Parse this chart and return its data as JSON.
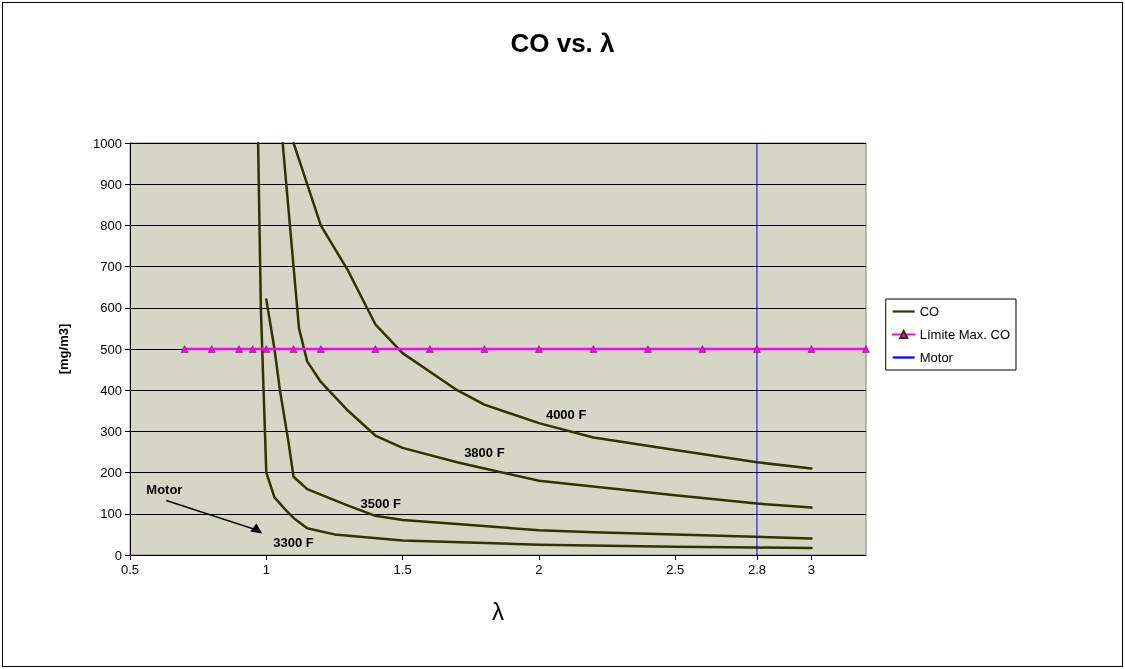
{
  "chart_data": {
    "type": "line",
    "title": "CO vs. λ",
    "xlabel": "λ",
    "ylabel": "[mg/m3]",
    "xlim": [
      0.5,
      3.2
    ],
    "xticks": [
      0.5,
      1,
      1.5,
      2,
      2.5,
      2.8,
      3
    ],
    "ylim": [
      0,
      1000
    ],
    "yticks": [
      0,
      100,
      200,
      300,
      400,
      500,
      600,
      700,
      800,
      900,
      1000
    ],
    "grid": "y",
    "legend": "right",
    "marker": "none",
    "line_style": "solid",
    "series": [
      {
        "name": "CO",
        "color": "#333300",
        "x": [
          0.97,
          0.975,
          0.98,
          0.99,
          1.0,
          1.03,
          1.07,
          1.1,
          1.15,
          1.25,
          1.5,
          2,
          2.5,
          2.8,
          3
        ],
        "values": [
          1000,
          800,
          600,
          400,
          200,
          140,
          110,
          90,
          65,
          50,
          35,
          25,
          20,
          18,
          17
        ]
      },
      {
        "color": "#333300",
        "x": [
          1.0,
          1.03,
          1.05,
          1.08,
          1.1,
          1.15,
          1.3,
          1.4,
          1.5,
          1.7,
          2,
          2.2,
          2.5,
          3
        ],
        "values": [
          620,
          500,
          400,
          280,
          190,
          160,
          120,
          95,
          85,
          75,
          60,
          55,
          50,
          40
        ]
      },
      {
        "color": "#333300",
        "x": [
          1.06,
          1.08,
          1.1,
          1.12,
          1.15,
          1.2,
          1.3,
          1.4,
          1.5,
          1.7,
          1.8,
          2,
          2.5,
          2.8,
          3
        ],
        "values": [
          1000,
          850,
          700,
          550,
          470,
          420,
          350,
          290,
          260,
          225,
          210,
          180,
          145,
          125,
          115
        ]
      },
      {
        "color": "#333300",
        "x": [
          1.1,
          1.14,
          1.2,
          1.3,
          1.4,
          1.5,
          1.7,
          1.8,
          2,
          2.2,
          2.5,
          2.8,
          3
        ],
        "values": [
          1000,
          920,
          800,
          690,
          560,
          490,
          400,
          365,
          320,
          285,
          255,
          225,
          210
        ]
      },
      {
        "name": "Límite Max. CO",
        "color": "#ff00ff",
        "marker": "triangle",
        "x": [
          0.7,
          0.8,
          0.9,
          0.95,
          1,
          1.1,
          1.2,
          1.4,
          1.6,
          1.8,
          2,
          2.2,
          2.4,
          2.6,
          2.8,
          3,
          3.2
        ],
        "values": [
          500,
          500,
          500,
          500,
          500,
          500,
          500,
          500,
          500,
          500,
          500,
          500,
          500,
          500,
          500,
          500,
          500
        ]
      },
      {
        "name": "Motor",
        "color": "#0000ff",
        "x": [
          2.8,
          2.8
        ],
        "values": [
          0,
          1000
        ]
      }
    ],
    "annotations": [
      "4000 F",
      "3800 F",
      "3500 F",
      "3300 F",
      "Motor"
    ]
  }
}
